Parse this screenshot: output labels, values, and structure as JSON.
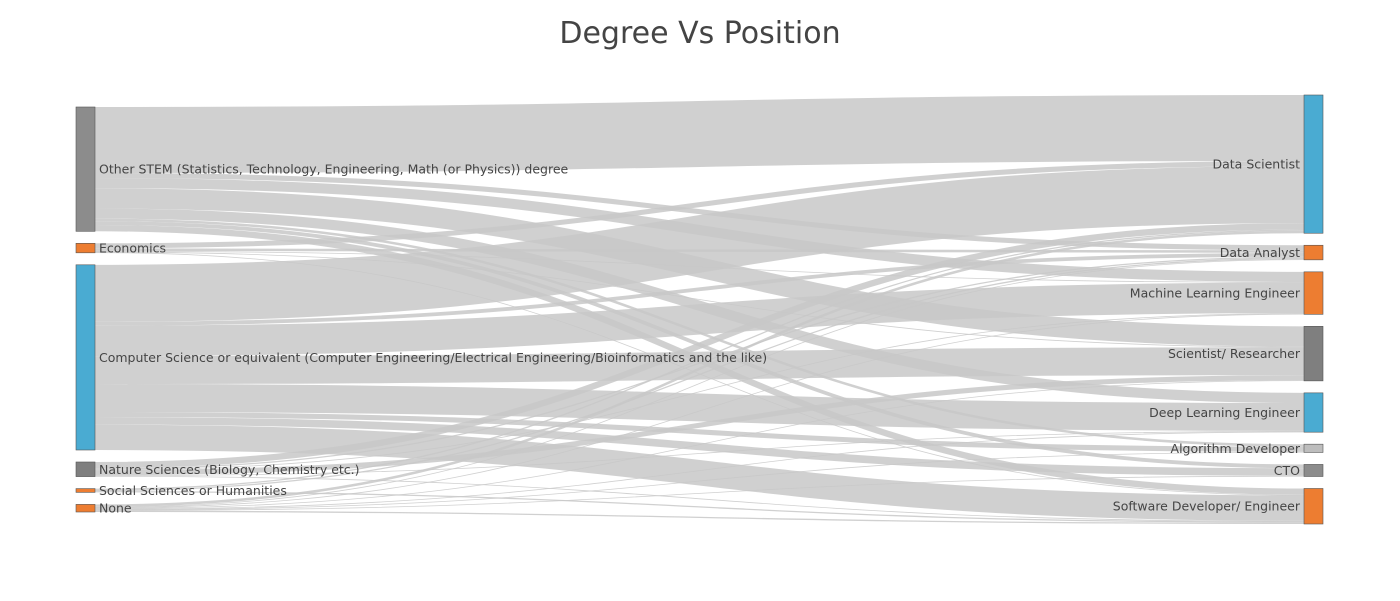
{
  "chart_data": {
    "type": "sankey",
    "title": "Degree Vs Position",
    "link_color": "#c8c8c8",
    "sources": [
      {
        "name": "Other STEM (Statistics, Technology, Engineering, Math (or Physics)) degree",
        "color": "#8c8c8c"
      },
      {
        "name": "Economics",
        "color": "#ed7d31"
      },
      {
        "name": "Computer Science or equivalent (Computer Engineering/Electrical Engineering/Bioinformatics and the like)",
        "color": "#4aabd2"
      },
      {
        "name": "Nature Sciences (Biology, Chemistry etc.)",
        "color": "#7f7f7f"
      },
      {
        "name": "Social Sciences or Humanities",
        "color": "#ed7d31"
      },
      {
        "name": "None",
        "color": "#ed7d31"
      }
    ],
    "targets": [
      {
        "name": "Data Scientist",
        "color": "#4aabd2"
      },
      {
        "name": "Data Analyst",
        "color": "#ed7d31"
      },
      {
        "name": "Machine Learning Engineer",
        "color": "#ed7d31"
      },
      {
        "name": "Scientist/ Researcher",
        "color": "#7f7f7f"
      },
      {
        "name": "Deep Learning Engineer",
        "color": "#4aabd2"
      },
      {
        "name": "Algorithm Developer",
        "color": "#bdbdbd"
      },
      {
        "name": "CTO",
        "color": "#8c8c8c"
      },
      {
        "name": "Software Developer/ Engineer",
        "color": "#ed7d31"
      }
    ],
    "links": [
      {
        "source": "Other STEM (Statistics, Technology, Engineering, Math (or Physics)) degree",
        "target": "Data Scientist",
        "value": 52
      },
      {
        "source": "Other STEM (Statistics, Technology, Engineering, Math (or Physics)) degree",
        "target": "Data Analyst",
        "value": 4
      },
      {
        "source": "Other STEM (Statistics, Technology, Engineering, Math (or Physics)) degree",
        "target": "Machine Learning Engineer",
        "value": 8
      },
      {
        "source": "Other STEM (Statistics, Technology, Engineering, Math (or Physics)) degree",
        "target": "Scientist/ Researcher",
        "value": 16
      },
      {
        "source": "Other STEM (Statistics, Technology, Engineering, Math (or Physics)) degree",
        "target": "Deep Learning Engineer",
        "value": 8
      },
      {
        "source": "Other STEM (Statistics, Technology, Engineering, Math (or Physics)) degree",
        "target": "Algorithm Developer",
        "value": 2
      },
      {
        "source": "Other STEM (Statistics, Technology, Engineering, Math (or Physics)) degree",
        "target": "CTO",
        "value": 3
      },
      {
        "source": "Other STEM (Statistics, Technology, Engineering, Math (or Physics)) degree",
        "target": "Software Developer/ Engineer",
        "value": 5
      },
      {
        "source": "Economics",
        "target": "Data Scientist",
        "value": 4
      },
      {
        "source": "Economics",
        "target": "Data Analyst",
        "value": 2
      },
      {
        "source": "Economics",
        "target": "Machine Learning Engineer",
        "value": 0.5
      },
      {
        "source": "Economics",
        "target": "Scientist/ Researcher",
        "value": 0.5
      },
      {
        "source": "Economics",
        "target": "Software Developer/ Engineer",
        "value": 0.5
      },
      {
        "source": "Computer Science or equivalent (Computer Engineering/Electrical Engineering/Bioinformatics and the like)",
        "target": "Data Scientist",
        "value": 45
      },
      {
        "source": "Computer Science or equivalent (Computer Engineering/Electrical Engineering/Bioinformatics and the like)",
        "target": "Data Analyst",
        "value": 3
      },
      {
        "source": "Computer Science or equivalent (Computer Engineering/Electrical Engineering/Bioinformatics and the like)",
        "target": "Machine Learning Engineer",
        "value": 24
      },
      {
        "source": "Computer Science or equivalent (Computer Engineering/Electrical Engineering/Bioinformatics and the like)",
        "target": "Scientist/ Researcher",
        "value": 22
      },
      {
        "source": "Computer Science or equivalent (Computer Engineering/Electrical Engineering/Bioinformatics and the like)",
        "target": "Deep Learning Engineer",
        "value": 22
      },
      {
        "source": "Computer Science or equivalent (Computer Engineering/Electrical Engineering/Bioinformatics and the like)",
        "target": "Algorithm Developer",
        "value": 4
      },
      {
        "source": "Computer Science or equivalent (Computer Engineering/Electrical Engineering/Bioinformatics and the like)",
        "target": "CTO",
        "value": 6
      },
      {
        "source": "Computer Science or equivalent (Computer Engineering/Electrical Engineering/Bioinformatics and the like)",
        "target": "Software Developer/ Engineer",
        "value": 20
      },
      {
        "source": "Nature Sciences (Biology, Chemistry etc.)",
        "target": "Data Scientist",
        "value": 5
      },
      {
        "source": "Nature Sciences (Biology, Chemistry etc.)",
        "target": "Data Analyst",
        "value": 1
      },
      {
        "source": "Nature Sciences (Biology, Chemistry etc.)",
        "target": "Machine Learning Engineer",
        "value": 0.5
      },
      {
        "source": "Nature Sciences (Biology, Chemistry etc.)",
        "target": "Scientist/ Researcher",
        "value": 4
      },
      {
        "source": "Nature Sciences (Biology, Chemistry etc.)",
        "target": "Deep Learning Engineer",
        "value": 0.5
      },
      {
        "source": "Nature Sciences (Biology, Chemistry etc.)",
        "target": "Software Developer/ Engineer",
        "value": 0.5
      },
      {
        "source": "Social Sciences or Humanities",
        "target": "Data Scientist",
        "value": 1
      },
      {
        "source": "Social Sciences or Humanities",
        "target": "Data Analyst",
        "value": 1
      },
      {
        "source": "Social Sciences or Humanities",
        "target": "Software Developer/ Engineer",
        "value": 1
      },
      {
        "source": "None",
        "target": "Data Scientist",
        "value": 2
      },
      {
        "source": "None",
        "target": "Data Analyst",
        "value": 0.5
      },
      {
        "source": "None",
        "target": "Machine Learning Engineer",
        "value": 0.5
      },
      {
        "source": "None",
        "target": "Scientist/ Researcher",
        "value": 0.5
      },
      {
        "source": "None",
        "target": "Deep Learning Engineer",
        "value": 0.5
      },
      {
        "source": "None",
        "target": "Algorithm Developer",
        "value": 0.5
      },
      {
        "source": "None",
        "target": "CTO",
        "value": 0.5
      },
      {
        "source": "None",
        "target": "Software Developer/ Engineer",
        "value": 1
      }
    ]
  }
}
